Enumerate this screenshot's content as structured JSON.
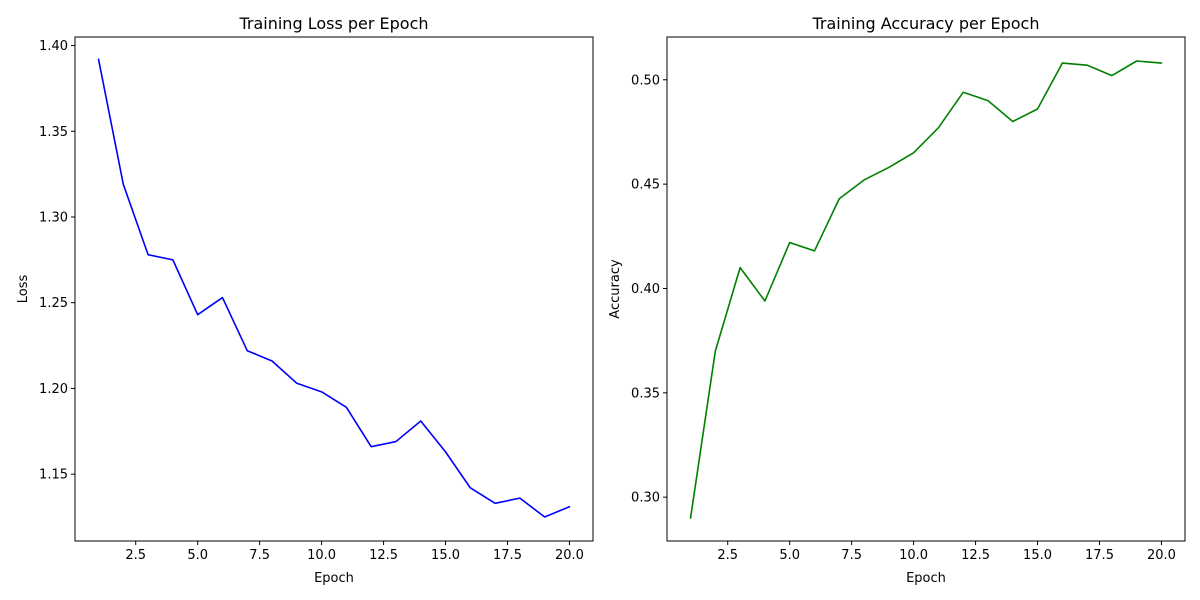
{
  "chart_data": [
    {
      "type": "line",
      "title": "Training Loss per Epoch",
      "xlabel": "Epoch",
      "ylabel": "Loss",
      "xlim": [
        0.05,
        20.95
      ],
      "ylim": [
        1.111,
        1.405
      ],
      "xticks": [
        2.5,
        5.0,
        7.5,
        10.0,
        12.5,
        15.0,
        17.5,
        20.0
      ],
      "xtick_labels": [
        "2.5",
        "5.0",
        "7.5",
        "10.0",
        "12.5",
        "15.0",
        "17.5",
        "20.0"
      ],
      "yticks": [
        1.15,
        1.2,
        1.25,
        1.3,
        1.35,
        1.4
      ],
      "ytick_labels": [
        "1.15",
        "1.20",
        "1.25",
        "1.30",
        "1.35",
        "1.40"
      ],
      "color": "#0000ff",
      "grid": false,
      "x": [
        1,
        2,
        3,
        4,
        5,
        6,
        7,
        8,
        9,
        10,
        11,
        12,
        13,
        14,
        15,
        16,
        17,
        18,
        19,
        20
      ],
      "values": [
        1.392,
        1.319,
        1.278,
        1.275,
        1.243,
        1.253,
        1.222,
        1.216,
        1.203,
        1.198,
        1.189,
        1.166,
        1.169,
        1.181,
        1.163,
        1.142,
        1.133,
        1.136,
        1.125,
        1.131
      ]
    },
    {
      "type": "line",
      "title": "Training Accuracy per Epoch",
      "xlabel": "Epoch",
      "ylabel": "Accuracy",
      "xlim": [
        0.05,
        20.95
      ],
      "ylim": [
        0.279,
        0.5205
      ],
      "xticks": [
        2.5,
        5.0,
        7.5,
        10.0,
        12.5,
        15.0,
        17.5,
        20.0
      ],
      "xtick_labels": [
        "2.5",
        "5.0",
        "7.5",
        "10.0",
        "12.5",
        "15.0",
        "17.5",
        "20.0"
      ],
      "yticks": [
        0.3,
        0.35,
        0.4,
        0.45,
        0.5
      ],
      "ytick_labels": [
        "0.30",
        "0.35",
        "0.40",
        "0.45",
        "0.50"
      ],
      "color": "#008000",
      "grid": false,
      "x": [
        1,
        2,
        3,
        4,
        5,
        6,
        7,
        8,
        9,
        10,
        11,
        12,
        13,
        14,
        15,
        16,
        17,
        18,
        19,
        20
      ],
      "values": [
        0.29,
        0.37,
        0.41,
        0.394,
        0.422,
        0.418,
        0.443,
        0.452,
        0.458,
        0.465,
        0.477,
        0.494,
        0.49,
        0.48,
        0.486,
        0.508,
        0.507,
        0.502,
        0.509,
        0.508
      ]
    }
  ]
}
